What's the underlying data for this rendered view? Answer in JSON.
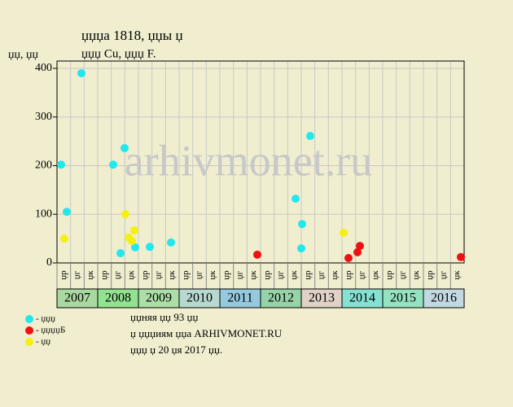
{
  "chart_data": {
    "type": "scatter",
    "title": "џџџа 1818, џџы џ",
    "subtitle": "џџџ Cu, џџџ F.",
    "y_label": "џџ, џџ",
    "watermark": "arhivmonet.ru",
    "xlim": [
      0,
      30
    ],
    "ylim": [
      0,
      415
    ],
    "yticks": [
      0,
      100,
      200,
      300,
      400
    ],
    "grid": true,
    "quarter_labels": [
      "џр",
      "џг",
      "џк",
      "џр",
      "џг",
      "џк",
      "џр",
      "џг",
      "џк",
      "џр",
      "џг",
      "џк",
      "џр",
      "џг",
      "џк",
      "џр",
      "џг",
      "џк",
      "џр",
      "џг",
      "џк",
      "џр",
      "џг",
      "џк",
      "џр",
      "џг",
      "џк",
      "џр",
      "џг",
      "џк"
    ],
    "years": [
      "2007",
      "2008",
      "2009",
      "2010",
      "2011",
      "2012",
      "2013",
      "2014",
      "2015",
      "2016"
    ],
    "year_colors": [
      "#a9d9a0",
      "#92e38f",
      "#acdfa8",
      "#b7d9cf",
      "#95c9de",
      "#97d3a9",
      "#e0d2c6",
      "#85e2d2",
      "#93e2c0",
      "#c3d9e2"
    ],
    "series": [
      {
        "name": "- џџџ",
        "color": "#22e8ee",
        "x": [
          0.3,
          0.72,
          1.8,
          4.14,
          4.68,
          4.98,
          5.76,
          6.84,
          8.4,
          17.58,
          18.06,
          18,
          18.66
        ],
        "values": [
          202,
          105,
          390,
          202,
          20,
          236,
          32,
          33,
          42,
          132,
          80,
          30,
          261
        ]
      },
      {
        "name": "- џџџџБ",
        "color": "#ee1111",
        "x": [
          14.76,
          21.48,
          22.14,
          22.32,
          29.76
        ],
        "values": [
          17,
          10,
          22,
          35,
          12
        ]
      },
      {
        "name": "- џџ",
        "color": "#f5f010",
        "x": [
          0.54,
          5.04,
          5.28,
          5.52,
          5.7,
          21.12
        ],
        "values": [
          50,
          100,
          52,
          45,
          67,
          62
        ]
      }
    ],
    "footer": [
      "џџняя џџ 93 џџ",
      "џ џџџиям џџа ARHIVMONET.RU",
      "џџџ џ 20 џя 2017 џџ."
    ]
  }
}
